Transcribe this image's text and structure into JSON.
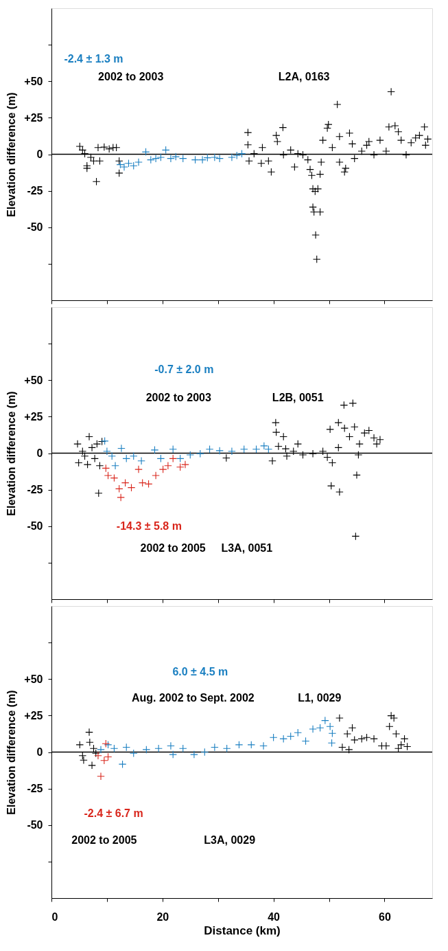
{
  "chart_data": [
    {
      "type": "scatter",
      "ylabel": "Elevation difference (m)",
      "xlim": [
        0,
        68.6
      ],
      "ylim": [
        -100,
        100
      ],
      "xticks": [
        0,
        {
          "value": 10,
          "label": null
        },
        20,
        {
          "value": 30,
          "label": null
        },
        40,
        {
          "value": 50,
          "label": null
        },
        60
      ],
      "yticks": [
        {
          "value": -75,
          "label": null
        },
        -50,
        -25,
        0,
        {
          "value": 25,
          "label": "+25"
        },
        {
          "value": 50,
          "label": "+50"
        },
        {
          "value": 75,
          "label": null
        }
      ],
      "tick_labels": "y",
      "marker": "cross",
      "legend": false,
      "grid": false,
      "ref_lines": [
        {
          "axis": "y",
          "value": 0,
          "color": "#000000"
        }
      ],
      "annotations": [
        "2002 to 2003",
        "L2A, 0163"
      ],
      "series": [
        {
          "color": "#000000",
          "x": [
            5.1,
            5.6,
            6.0,
            6.4,
            6.4,
            7.1,
            7.6,
            8.1,
            8.4,
            8.7,
            9.5,
            10.4,
            11.1,
            11.7,
            12.2,
            12.2,
            35.4,
            35.4,
            35.6,
            36.5,
            37.8,
            38.0,
            39.1,
            39.6,
            40.5,
            40.7,
            41.7,
            41.8,
            43.1,
            43.8,
            44.4,
            45.3,
            46.2,
            46.6,
            46.9,
            47.1,
            48.0,
            47.5,
            47.1,
            47.3,
            48.4,
            48.6,
            48.4,
            47.6,
            47.8,
            48.9,
            49.7,
            49.9,
            50.6,
            51.5,
            51.9,
            51.9,
            52.8,
            53.0,
            53.7,
            54.2,
            54.6,
            55.9,
            56.8,
            57.2,
            58.1,
            59.2,
            60.3,
            60.8,
            61.2,
            61.9,
            62.5,
            63.0,
            63.9,
            64.8,
            65.6,
            66.3,
            67.2,
            67.4,
            67.8
          ],
          "values": [
            5.4,
            2.9,
            0.4,
            -7.9,
            -9.6,
            -2.1,
            -4.6,
            -18.7,
            4.6,
            -4.6,
            4.9,
            3.7,
            4.6,
            4.6,
            -4.6,
            -12.9,
            14.9,
            6.5,
            -4.6,
            0.4,
            -6.2,
            4.6,
            -4.6,
            -12.1,
            12.9,
            8.7,
            18.3,
            -0.4,
            2.9,
            -8.7,
            0.4,
            -0.4,
            -3.8,
            -10.4,
            -14.5,
            -23.7,
            -23.7,
            -25.4,
            -36.2,
            -39.5,
            -39.5,
            -5.4,
            -13.7,
            -55.3,
            -71.9,
            9.6,
            17.9,
            20.4,
            4.6,
            34.1,
            12.1,
            -5.4,
            -12.1,
            -9.6,
            14.5,
            7.1,
            -2.9,
            2.1,
            6.2,
            8.7,
            -0.4,
            9.6,
            2.1,
            18.7,
            42.8,
            19.5,
            15.4,
            9.6,
            -0.4,
            7.9,
            11.2,
            12.9,
            18.7,
            6.2,
            10.4
          ]
        },
        {
          "name": "-2.4 ± 1.3 m",
          "color": "#1a7fc1",
          "x": [
            12.4,
            13.1,
            13.9,
            14.8,
            15.7,
            17.0,
            17.9,
            18.8,
            19.7,
            20.6,
            21.5,
            22.4,
            23.7,
            25.9,
            27.2,
            28.1,
            29.4,
            30.3,
            32.5,
            33.4,
            34.3
          ],
          "values": [
            -7.1,
            -8.7,
            -6.2,
            -7.9,
            -5.4,
            1.6,
            -3.8,
            -2.9,
            -2.1,
            2.9,
            -2.9,
            -1.7,
            -2.9,
            -3.8,
            -3.8,
            -2.4,
            -2.1,
            -2.9,
            -2.1,
            -0.8,
            0.4
          ]
        }
      ]
    },
    {
      "type": "scatter",
      "ylabel": "Elevation difference (m)",
      "xlim": [
        0,
        68.6
      ],
      "ylim": [
        -100,
        100
      ],
      "xticks": [
        0,
        {
          "value": 10,
          "label": null
        },
        20,
        {
          "value": 30,
          "label": null
        },
        40,
        {
          "value": 50,
          "label": null
        },
        60
      ],
      "yticks": [
        {
          "value": -75,
          "label": null
        },
        -50,
        -25,
        0,
        {
          "value": 25,
          "label": "+25"
        },
        {
          "value": 50,
          "label": "+50"
        },
        {
          "value": 75,
          "label": null
        }
      ],
      "tick_labels": "y",
      "marker": "cross",
      "legend": false,
      "grid": false,
      "ref_lines": [
        {
          "axis": "y",
          "value": 0,
          "color": "#000000"
        }
      ],
      "annotations": [
        "2002 to 2003",
        "L2B, 0051",
        "2002 to 2005",
        "L3A, 0051"
      ],
      "series": [
        {
          "color": "#000000",
          "x": [
            4.7,
            4.9,
            5.6,
            6.0,
            6.5,
            6.8,
            7.3,
            7.8,
            8.2,
            8.5,
            8.7,
            9.1,
            31.5,
            39.8,
            40.4,
            40.5,
            41.8,
            40.9,
            42.2,
            42.4,
            43.6,
            44.4,
            45.3,
            47.1,
            48.9,
            49.7,
            50.2,
            50.4,
            50.6,
            51.7,
            51.9,
            51.7,
            52.7,
            52.8,
            53.7,
            54.3,
            54.6,
            55.3,
            55.0,
            54.8,
            55.5,
            56.4,
            57.2,
            58.1,
            58.6,
            59.2
          ],
          "values": [
            6.3,
            -6.6,
            1.3,
            -2.0,
            -7.8,
            11.3,
            3.8,
            -3.7,
            6.3,
            -27.4,
            -8.6,
            8.0,
            -3.3,
            -5.3,
            20.9,
            14.3,
            11.3,
            4.7,
            3.0,
            -2.0,
            1.3,
            6.3,
            -1.2,
            -0.3,
            1.3,
            -2.8,
            16.3,
            -22.4,
            -6.6,
            3.8,
            -26.6,
            20.9,
            32.9,
            17.1,
            11.3,
            34.2,
            18.0,
            -1.2,
            -15.0,
            -56.9,
            6.3,
            13.8,
            15.5,
            10.5,
            6.3,
            9.3
          ]
        },
        {
          "name": "-0.7 ± 2.0 m",
          "color": "#1a7fc1",
          "x": [
            9.6,
            10.0,
            10.9,
            11.5,
            12.6,
            13.5,
            14.8,
            16.2,
            18.6,
            19.7,
            21.9,
            23.2,
            25.0,
            26.8,
            28.5,
            30.3,
            32.5,
            34.7,
            36.9,
            38.3,
            39.1
          ],
          "values": [
            8.3,
            1.3,
            -2.0,
            -8.6,
            3.3,
            -3.7,
            -2.0,
            -5.3,
            2.2,
            -3.7,
            2.7,
            -3.7,
            -1.2,
            -0.3,
            2.7,
            1.7,
            1.3,
            2.7,
            2.7,
            5.0,
            2.7
          ]
        },
        {
          "name": "-14.3 ± 5.8 m",
          "color": "#d9261c",
          "x": [
            9.8,
            10.2,
            11.3,
            12.2,
            12.5,
            13.3,
            14.4,
            15.7,
            16.4,
            17.5,
            18.8,
            20.1,
            21.0,
            21.9,
            23.2,
            24.1
          ],
          "values": [
            -10.3,
            -15.3,
            -17.0,
            -24.4,
            -30.3,
            -20.3,
            -23.6,
            -11.1,
            -20.3,
            -21.1,
            -15.3,
            -11.1,
            -8.6,
            -3.7,
            -9.5,
            -7.8
          ]
        }
      ]
    },
    {
      "type": "scatter",
      "ylabel": "Elevation difference (m)",
      "xlabel": "Distance (km)",
      "xlim": [
        0,
        68.6
      ],
      "ylim": [
        -100,
        100
      ],
      "xticks": [
        0,
        {
          "value": 10,
          "label": null
        },
        20,
        {
          "value": 30,
          "label": null
        },
        40,
        {
          "value": 50,
          "label": null
        },
        60
      ],
      "yticks": [
        {
          "value": -75,
          "label": null
        },
        -50,
        -25,
        0,
        {
          "value": 25,
          "label": "+25"
        },
        {
          "value": 50,
          "label": "+50"
        },
        {
          "value": 75,
          "label": null
        }
      ],
      "marker": "cross",
      "legend": false,
      "grid": false,
      "ref_lines": [
        {
          "axis": "y",
          "value": 0,
          "color": "#000000"
        }
      ],
      "annotations": [
        "Aug. 2002 to Sept. 2002",
        "L1, 0029",
        "2002 to 2005",
        "L3A, 0029"
      ],
      "series": [
        {
          "color": "#000000",
          "x": [
            5.1,
            5.6,
            5.8,
            6.8,
            6.9,
            7.3,
            7.6,
            8.0,
            51.9,
            52.4,
            53.3,
            53.6,
            54.2,
            54.6,
            55.9,
            56.8,
            58.1,
            59.5,
            60.3,
            60.9,
            61.2,
            61.7,
            62.1,
            62.5,
            63.0,
            63.6,
            64.1
          ],
          "values": [
            5.0,
            -2.5,
            -5.5,
            13.6,
            6.7,
            -9.1,
            2.5,
            -0.8,
            23.3,
            3.3,
            12.5,
            1.7,
            16.6,
            8.3,
            9.1,
            10.0,
            9.1,
            4.2,
            4.2,
            17.5,
            24.9,
            23.3,
            12.5,
            2.5,
            5.0,
            9.1,
            3.8
          ]
        },
        {
          "name": "6.0 ± 4.5 m",
          "color": "#1a7fc1",
          "x": [
            8.9,
            10.2,
            11.3,
            12.8,
            13.5,
            14.8,
            17.1,
            19.3,
            21.5,
            21.9,
            23.7,
            25.7,
            27.6,
            29.4,
            31.6,
            33.8,
            36.0,
            38.2,
            40.0,
            41.8,
            43.1,
            44.4,
            45.8,
            47.1,
            48.4,
            49.3,
            50.2,
            50.6,
            50.5
          ],
          "values": [
            1.7,
            5.0,
            2.5,
            -8.3,
            3.3,
            -0.8,
            1.7,
            2.5,
            4.2,
            -1.7,
            2.5,
            -1.7,
            0,
            3.3,
            2.5,
            5.0,
            5.0,
            4.2,
            10.0,
            9.1,
            10.8,
            13.3,
            7.5,
            15.8,
            16.6,
            21.6,
            17.5,
            12.8,
            6.2
          ]
        },
        {
          "name": "-2.4 ± 6.7 m",
          "color": "#d9261c",
          "x": [
            8.4,
            8.9,
            9.5,
            9.8,
            10.2
          ],
          "values": [
            -2.5,
            -16.6,
            -5.8,
            5.8,
            -3.3
          ]
        }
      ]
    }
  ]
}
